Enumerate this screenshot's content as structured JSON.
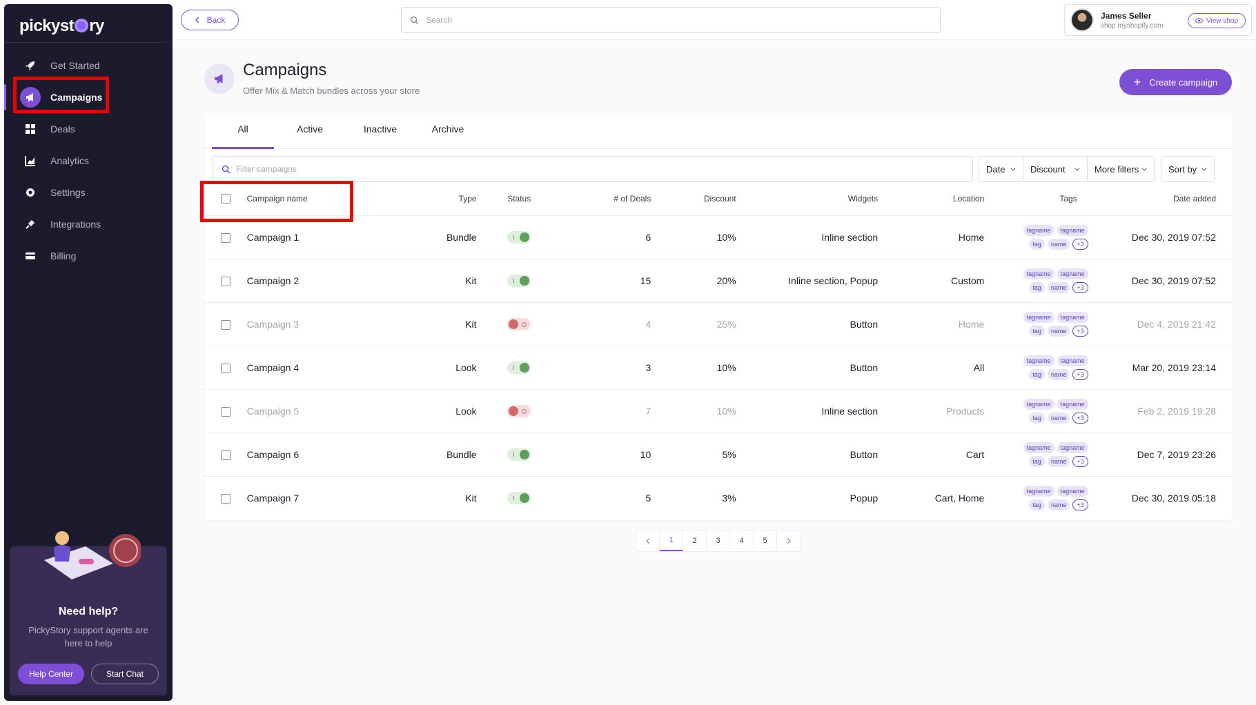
{
  "app": {
    "brand": "pickystory",
    "brand_pre": "pickyst",
    "brand_post": "ry"
  },
  "sidebar": {
    "items": [
      {
        "label": "Get Started",
        "icon": "rocket-icon"
      },
      {
        "label": "Campaigns",
        "icon": "megaphone-icon",
        "active": true
      },
      {
        "label": "Deals",
        "icon": "grid-icon"
      },
      {
        "label": "Analytics",
        "icon": "chart-icon"
      },
      {
        "label": "Settings",
        "icon": "gear-icon"
      },
      {
        "label": "Integrations",
        "icon": "plug-icon"
      },
      {
        "label": "Billing",
        "icon": "card-icon"
      }
    ],
    "help": {
      "title": "Need help?",
      "text": "PickyStory support agents are here to help",
      "help_center": "Help Center",
      "start_chat": "Start Chat"
    }
  },
  "topbar": {
    "back": "Back",
    "search_placeholder": "Search",
    "user_name": "James Seller",
    "user_shop": "shop.myshopify.com",
    "view_shop": "View shop"
  },
  "page": {
    "title": "Campaigns",
    "subtitle": "Offer Mix & Match bundles across your store",
    "create": "Create campaign"
  },
  "tabs": [
    "All",
    "Active",
    "Inactive",
    "Archive"
  ],
  "filters": {
    "placeholder": "Filter campaigns",
    "date": "Date",
    "discount": "Discount",
    "more": "More filters",
    "sort": "Sort by"
  },
  "table": {
    "headers": {
      "name": "Campaign name",
      "type": "Type",
      "status": "Status",
      "deals": "# of Deals",
      "discount": "Discount",
      "widgets": "Widgets",
      "location": "Location",
      "tags": "Tags",
      "date": "Date added"
    },
    "tag_labels": [
      "tagname",
      "tagname",
      "tag",
      "name",
      "+3"
    ],
    "rows": [
      {
        "name": "Campaign 1",
        "type": "Bundle",
        "active": true,
        "deals": "6",
        "discount": "10%",
        "widgets": "Inline section",
        "location": "Home",
        "date": "Dec 30, 2019 07:52"
      },
      {
        "name": "Campaign 2",
        "type": "Kit",
        "active": true,
        "deals": "15",
        "discount": "20%",
        "widgets": "Inline section, Popup",
        "location": "Custom",
        "date": "Dec 30, 2019 07:52"
      },
      {
        "name": "Campaign 3",
        "type": "Kit",
        "active": false,
        "deals": "4",
        "discount": "25%",
        "widgets": "Button",
        "location": "Home",
        "date": "Dec 4, 2019 21:42"
      },
      {
        "name": "Campaign 4",
        "type": "Look",
        "active": true,
        "deals": "3",
        "discount": "10%",
        "widgets": "Button",
        "location": "All",
        "date": "Mar 20, 2019 23:14"
      },
      {
        "name": "Campaign 5",
        "type": "Look",
        "active": false,
        "deals": "7",
        "discount": "10%",
        "widgets": "Inline section",
        "location": "Products",
        "date": "Feb 2, 2019 19:28"
      },
      {
        "name": "Campaign 6",
        "type": "Bundle",
        "active": true,
        "deals": "10",
        "discount": "5%",
        "widgets": "Button",
        "location": "Cart",
        "date": "Dec 7, 2019 23:26"
      },
      {
        "name": "Campaign 7",
        "type": "Kit",
        "active": true,
        "deals": "5",
        "discount": "3%",
        "widgets": "Popup",
        "location": "Cart, Home",
        "date": "Dec 30, 2019 05:18"
      }
    ]
  },
  "pagination": {
    "pages": [
      "1",
      "2",
      "3",
      "4",
      "5"
    ],
    "current": "1"
  },
  "colors": {
    "accent": "#7c4fd6",
    "sidebar": "#1c1b2e",
    "highlight": "#f00000"
  }
}
